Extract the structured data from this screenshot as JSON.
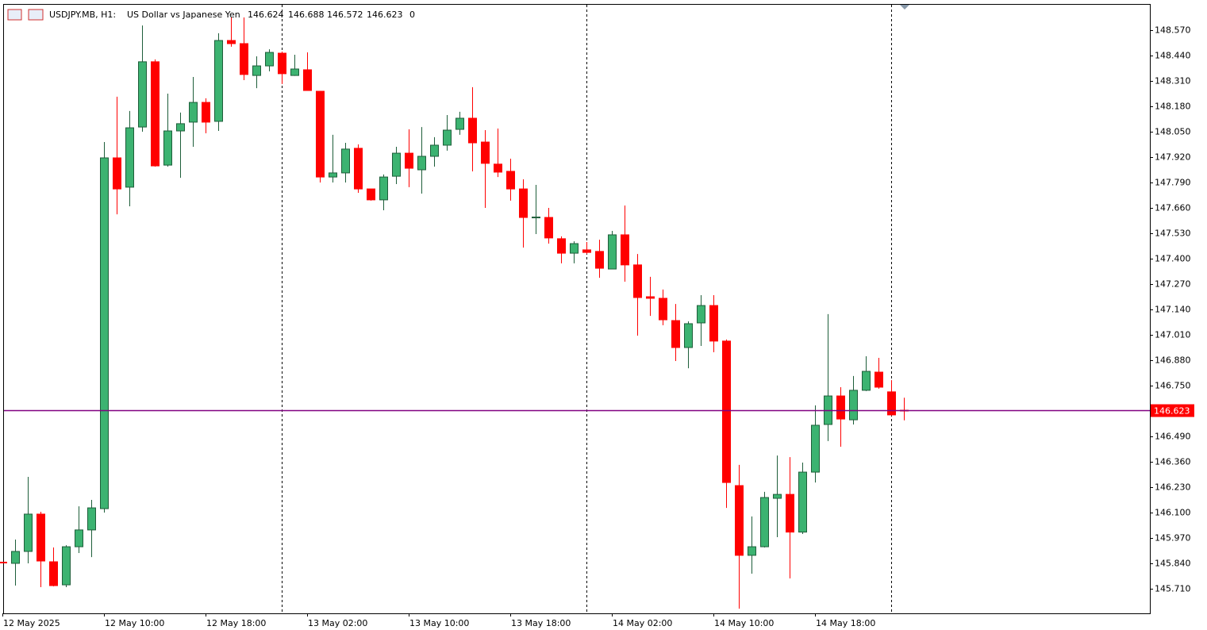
{
  "chart_data": {
    "type": "candlestick",
    "header": {
      "symbol": "USDJPY.MB, H1:",
      "description": "US Dollar vs Japanese Yen",
      "ohlc": [
        146.624,
        146.688,
        146.572,
        146.623
      ],
      "volume": 0
    },
    "categories": [
      "12 May 2025",
      null,
      null,
      null,
      null,
      null,
      null,
      null,
      "12 May 10:00",
      null,
      null,
      null,
      null,
      null,
      null,
      null,
      "12 May 18:00",
      null,
      null,
      null,
      null,
      null,
      null,
      null,
      "13 May 02:00",
      null,
      null,
      null,
      null,
      null,
      null,
      null,
      "13 May 10:00",
      null,
      null,
      null,
      null,
      null,
      null,
      null,
      "13 May 18:00",
      null,
      null,
      null,
      null,
      null,
      null,
      null,
      "14 May 02:00",
      null,
      null,
      null,
      null,
      null,
      null,
      null,
      "14 May 10:00",
      null,
      null,
      null,
      null,
      null,
      null,
      null,
      "14 May 18:00",
      null,
      null,
      null,
      null,
      null,
      null,
      null
    ],
    "open": [
      145.846,
      145.84,
      145.901,
      146.092,
      145.848,
      145.73,
      145.925,
      146.011,
      146.12,
      147.916,
      147.766,
      148.074,
      148.408,
      147.879,
      148.054,
      148.099,
      148.2,
      148.103,
      148.517,
      148.501,
      148.338,
      148.387,
      148.452,
      148.338,
      148.367,
      148.257,
      147.818,
      147.839,
      147.965,
      147.757,
      147.701,
      147.822,
      147.94,
      147.855,
      147.924,
      147.981,
      148.062,
      148.119,
      147.997,
      147.884,
      147.847,
      147.757,
      147.609,
      147.611,
      147.502,
      147.428,
      147.445,
      147.437,
      147.347,
      147.522,
      147.368,
      147.205,
      147.197,
      147.083,
      146.945,
      147.071,
      147.16,
      146.978,
      146.238,
      145.881,
      145.925,
      146.173,
      146.193,
      146.0,
      146.307,
      146.551,
      146.697,
      146.575,
      146.726,
      146.819,
      146.718,
      146.624
    ],
    "high": [
      145.848,
      145.962,
      146.283,
      146.104,
      145.921,
      145.933,
      146.132,
      146.165,
      147.997,
      148.229,
      148.156,
      148.594,
      148.42,
      148.245,
      148.148,
      148.33,
      148.221,
      148.554,
      148.635,
      148.635,
      148.436,
      148.472,
      148.46,
      148.444,
      148.456,
      148.259,
      148.034,
      147.993,
      147.985,
      147.757,
      147.831,
      147.973,
      148.062,
      148.074,
      148.022,
      148.135,
      148.152,
      148.278,
      148.058,
      148.066,
      147.912,
      147.806,
      147.778,
      147.66,
      147.514,
      147.489,
      147.485,
      147.497,
      147.542,
      147.672,
      147.424,
      147.307,
      147.242,
      147.168,
      147.079,
      147.213,
      147.213,
      146.986,
      146.344,
      146.08,
      146.206,
      146.392,
      146.384,
      146.356,
      146.649,
      147.116,
      146.742,
      146.799,
      146.9,
      146.892,
      146.778,
      146.688
    ],
    "low": [
      145.84,
      145.726,
      145.84,
      145.718,
      145.722,
      145.718,
      145.893,
      145.872,
      146.1,
      147.627,
      147.668,
      148.05,
      147.871,
      147.871,
      147.814,
      147.973,
      148.042,
      148.054,
      148.485,
      148.314,
      148.273,
      148.359,
      148.294,
      148.336,
      148.259,
      147.79,
      147.79,
      147.79,
      147.737,
      147.697,
      147.648,
      147.782,
      147.766,
      147.733,
      147.871,
      147.953,
      148.034,
      147.847,
      147.66,
      147.818,
      147.697,
      147.457,
      147.526,
      147.477,
      147.376,
      147.376,
      147.424,
      147.302,
      147.347,
      147.282,
      147.006,
      147.107,
      147.059,
      146.876,
      146.839,
      146.953,
      146.921,
      146.124,
      145.608,
      145.787,
      145.921,
      145.974,
      145.763,
      145.99,
      146.254,
      146.466,
      146.437,
      146.551,
      146.722,
      146.734,
      146.596,
      146.572
    ],
    "close": [
      145.842,
      145.901,
      146.092,
      145.852,
      145.726,
      145.925,
      146.011,
      146.124,
      147.916,
      147.757,
      148.07,
      148.408,
      147.875,
      148.054,
      148.091,
      148.2,
      148.099,
      148.517,
      148.501,
      148.343,
      148.387,
      148.456,
      148.347,
      148.371,
      148.261,
      147.818,
      147.839,
      147.961,
      147.757,
      147.701,
      147.818,
      147.94,
      147.863,
      147.924,
      147.981,
      148.058,
      148.119,
      147.993,
      147.888,
      147.843,
      147.757,
      147.611,
      147.613,
      147.506,
      147.428,
      147.477,
      147.432,
      147.351,
      147.522,
      147.368,
      147.201,
      147.197,
      147.087,
      146.945,
      147.067,
      147.16,
      146.978,
      146.254,
      145.881,
      145.925,
      146.177,
      146.193,
      146.0,
      146.307,
      146.547,
      146.697,
      146.579,
      146.726,
      146.823,
      146.742,
      146.6,
      146.623
    ],
    "up_color": "#3cb371",
    "down_color": "#ff0000",
    "ylim": [
      145.584,
      148.704
    ],
    "yticks": [
      {
        "value": 148.57,
        "label": "148.570"
      },
      {
        "value": 148.44,
        "label": "148.440"
      },
      {
        "value": 148.31,
        "label": "148.310"
      },
      {
        "value": 148.18,
        "label": "148.180"
      },
      {
        "value": 148.05,
        "label": "148.050"
      },
      {
        "value": 147.92,
        "label": "147.920"
      },
      {
        "value": 147.79,
        "label": "147.790"
      },
      {
        "value": 147.66,
        "label": "147.660"
      },
      {
        "value": 147.53,
        "label": "147.530"
      },
      {
        "value": 147.4,
        "label": "147.400"
      },
      {
        "value": 147.27,
        "label": "147.270"
      },
      {
        "value": 147.14,
        "label": "147.140"
      },
      {
        "value": 147.01,
        "label": "147.010"
      },
      {
        "value": 146.88,
        "label": "146.880"
      },
      {
        "value": 146.75,
        "label": "146.750"
      },
      {
        "value": 146.49,
        "label": "146.490"
      },
      {
        "value": 146.36,
        "label": "146.360"
      },
      {
        "value": 146.23,
        "label": "146.230"
      },
      {
        "value": 146.1,
        "label": "146.100"
      },
      {
        "value": 145.97,
        "label": "145.970"
      },
      {
        "value": 145.84,
        "label": "145.840"
      },
      {
        "value": 145.71,
        "label": "145.710"
      }
    ],
    "price_line": {
      "value": 146.623,
      "color": "#800080",
      "label_color": "#ff0000"
    }
  }
}
